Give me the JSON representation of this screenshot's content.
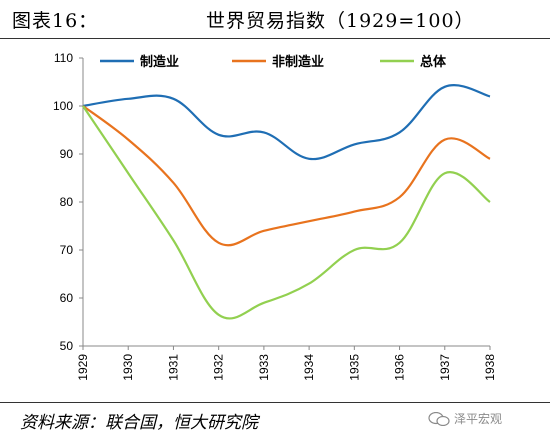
{
  "figure": {
    "label": "图表16：",
    "title": "世界贸易指数（1929=100）",
    "source": "资料来源：联合国，恒大研究院",
    "watermark": "泽平宏观"
  },
  "chart_data": {
    "type": "line",
    "title": "世界贸易指数（1929=100）",
    "xlabel": "",
    "ylabel": "",
    "categories": [
      "1929",
      "1930",
      "1931",
      "1932",
      "1933",
      "1934",
      "1935",
      "1936",
      "1937",
      "1938"
    ],
    "ylim": [
      50,
      110
    ],
    "yticks": [
      50,
      60,
      70,
      80,
      90,
      100,
      110
    ],
    "grid": false,
    "legend": "top",
    "series": [
      {
        "name": "制造业",
        "color": "#1f6eb4",
        "values": [
          100,
          101.5,
          101.5,
          94,
          94.5,
          89,
          92,
          94.5,
          104,
          102
        ]
      },
      {
        "name": "非制造业",
        "color": "#e8731e",
        "values": [
          100,
          93,
          84,
          71.5,
          74,
          76,
          78,
          81,
          93,
          89
        ]
      },
      {
        "name": "总体",
        "color": "#92d050",
        "values": [
          100,
          86,
          72,
          56.5,
          59,
          63,
          70,
          71.5,
          86,
          80
        ]
      }
    ]
  }
}
